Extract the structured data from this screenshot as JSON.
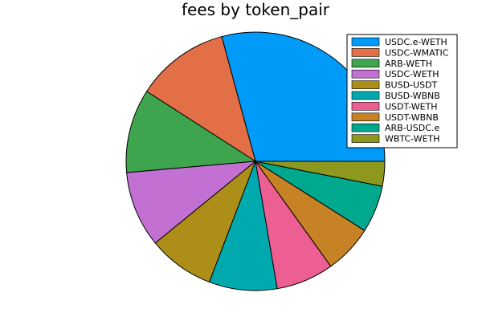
{
  "chart_data": {
    "type": "pie",
    "title": "fees by token_pair",
    "legend_position": "top-right",
    "categories": [
      "USDC.e-WETH",
      "USDC-WMATIC",
      "ARB-WETH",
      "USDC-WETH",
      "BUSD-USDT",
      "BUSD-WBNB",
      "USDT-WETH",
      "USDT-WBNB",
      "ARB-USDC.e",
      "WBTC-WETH"
    ],
    "values": [
      29.2,
      11.7,
      10.5,
      9.5,
      8.3,
      8.5,
      7.2,
      6.1,
      5.9,
      3.1
    ],
    "colors": [
      "#009af9",
      "#e26f46",
      "#3ea44e",
      "#c271d2",
      "#ac8e18",
      "#00a9ad",
      "#ed5e93",
      "#c68225",
      "#00a98d",
      "#8e971e"
    ]
  }
}
